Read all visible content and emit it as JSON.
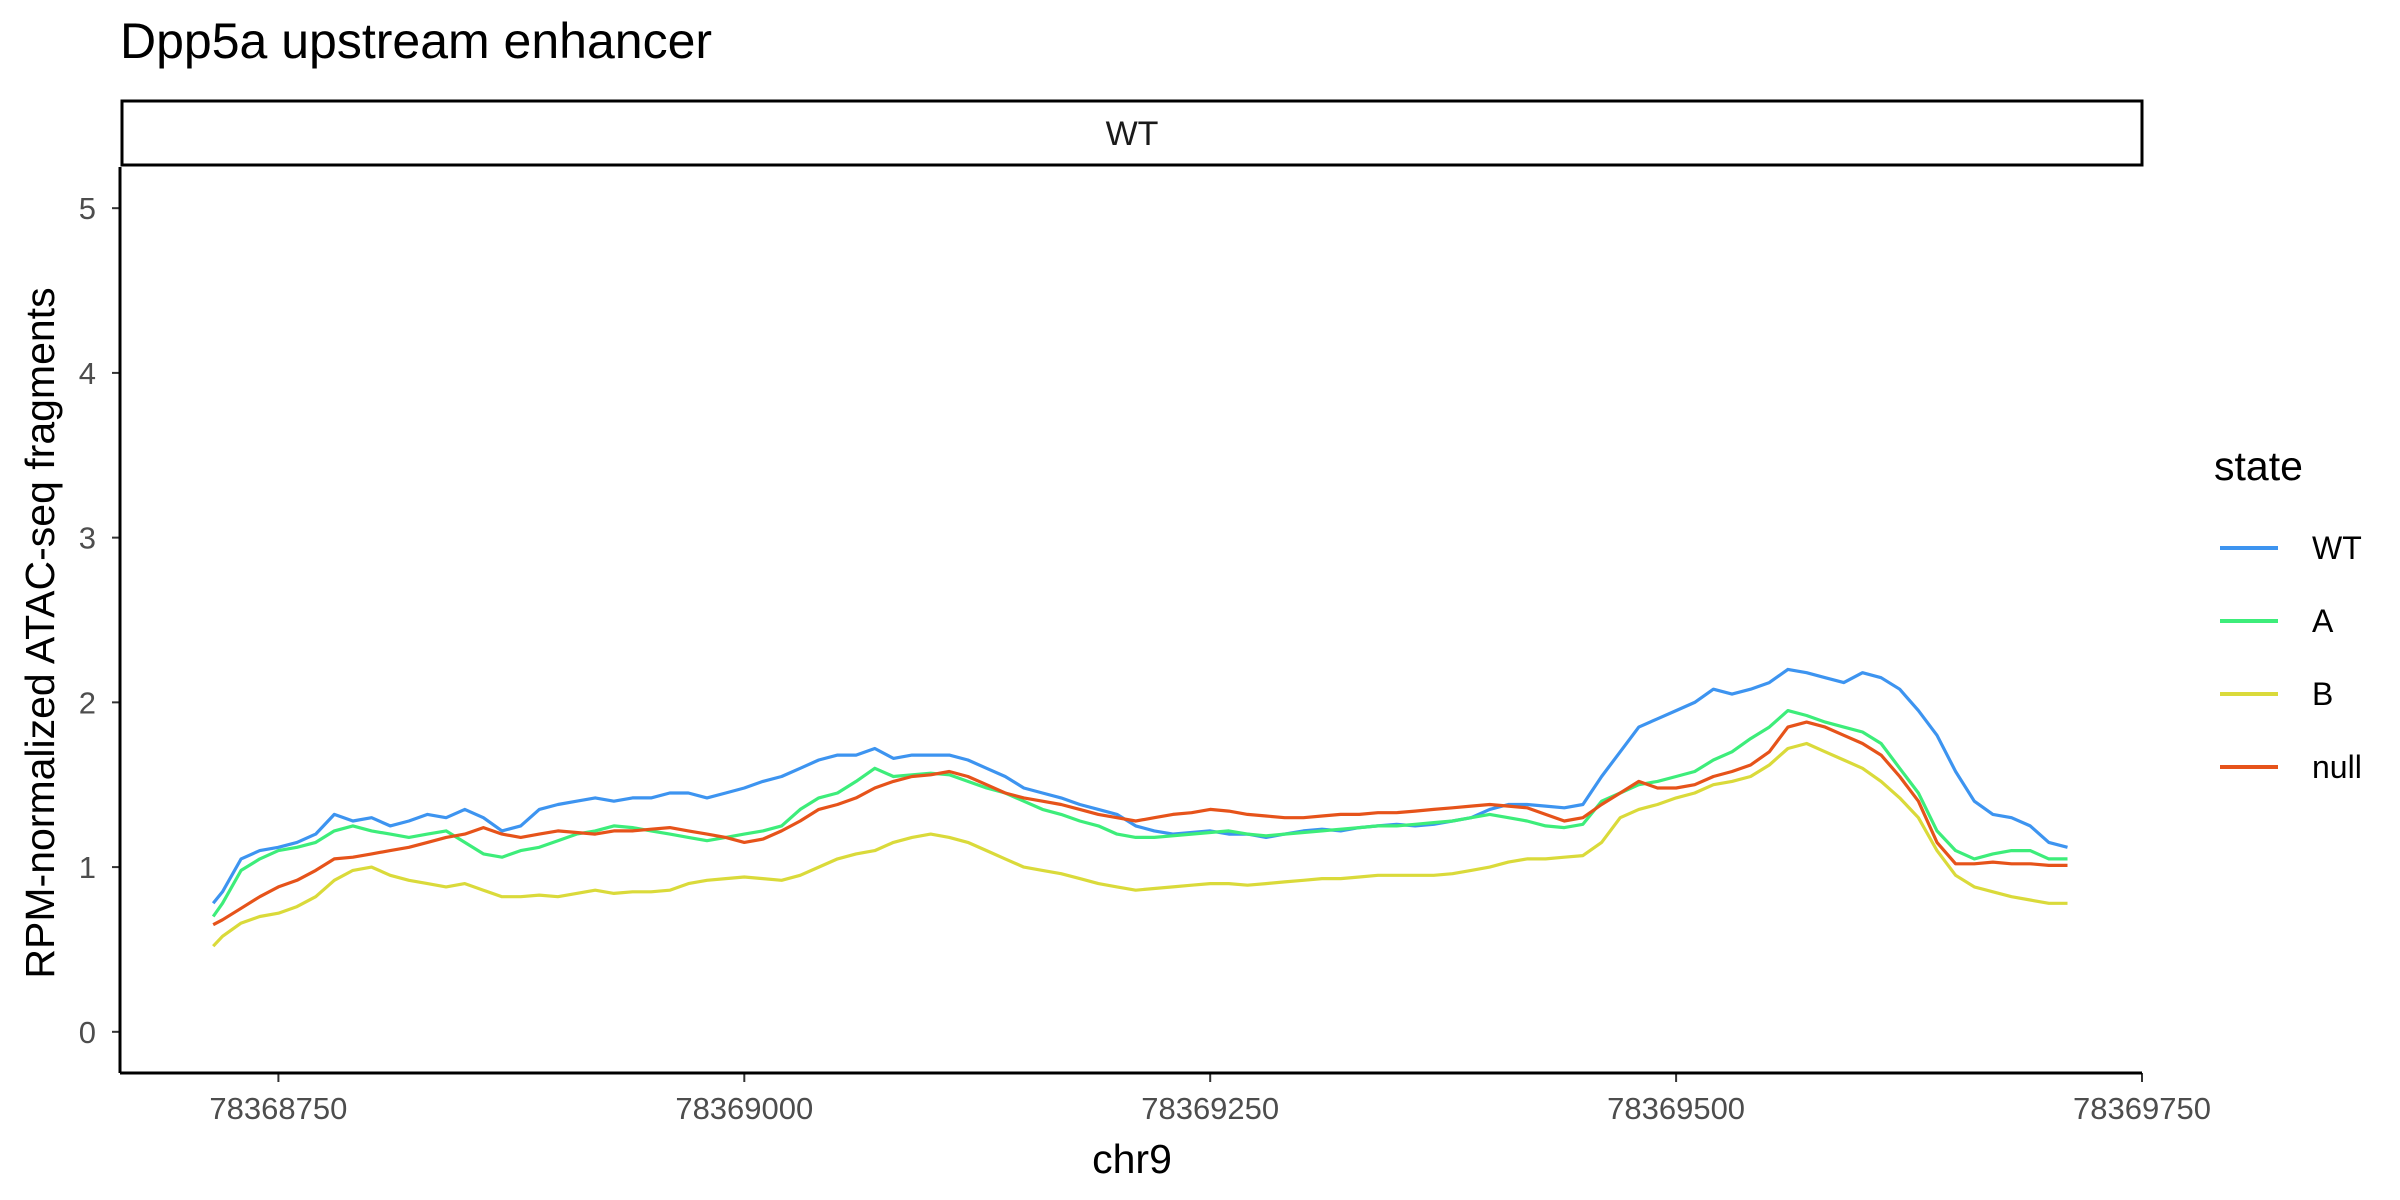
{
  "chart_data": {
    "type": "line",
    "title": "Dpp5a upstream enhancer",
    "facet_label": "WT",
    "xlabel": "chr9",
    "ylabel": "RPM-normalized ATAC-seq fragments",
    "xlim": [
      78368665,
      78369750
    ],
    "ylim": [
      -0.25,
      5.25
    ],
    "xticks": [
      78368750,
      78369000,
      78369250,
      78369500,
      78369750
    ],
    "yticks": [
      0,
      1,
      2,
      3,
      4,
      5
    ],
    "grid": false,
    "legend": {
      "title": "state",
      "position": "right"
    },
    "x": [
      78368715,
      78368720,
      78368730,
      78368740,
      78368750,
      78368760,
      78368770,
      78368780,
      78368790,
      78368800,
      78368810,
      78368820,
      78368830,
      78368840,
      78368850,
      78368860,
      78368870,
      78368880,
      78368890,
      78368900,
      78368910,
      78368920,
      78368930,
      78368940,
      78368950,
      78368960,
      78368970,
      78368980,
      78368990,
      78369000,
      78369010,
      78369020,
      78369030,
      78369040,
      78369050,
      78369060,
      78369070,
      78369080,
      78369090,
      78369100,
      78369110,
      78369120,
      78369130,
      78369140,
      78369150,
      78369160,
      78369170,
      78369180,
      78369190,
      78369200,
      78369210,
      78369220,
      78369230,
      78369240,
      78369250,
      78369260,
      78369270,
      78369280,
      78369290,
      78369300,
      78369310,
      78369320,
      78369330,
      78369340,
      78369350,
      78369360,
      78369370,
      78369380,
      78369390,
      78369400,
      78369410,
      78369420,
      78369430,
      78369440,
      78369450,
      78369460,
      78369470,
      78369480,
      78369490,
      78369500,
      78369510,
      78369520,
      78369530,
      78369540,
      78369550,
      78369560,
      78369570,
      78369580,
      78369590,
      78369600,
      78369610,
      78369620,
      78369630,
      78369640,
      78369650,
      78369660,
      78369670,
      78369680,
      78369690,
      78369700,
      78369710
    ],
    "series": [
      {
        "name": "WT",
        "color": "#3d94f0",
        "values": [
          0.78,
          0.85,
          1.05,
          1.1,
          1.12,
          1.15,
          1.2,
          1.32,
          1.28,
          1.3,
          1.25,
          1.28,
          1.32,
          1.3,
          1.35,
          1.3,
          1.22,
          1.25,
          1.35,
          1.38,
          1.4,
          1.42,
          1.4,
          1.42,
          1.42,
          1.45,
          1.45,
          1.42,
          1.45,
          1.48,
          1.52,
          1.55,
          1.6,
          1.65,
          1.68,
          1.68,
          1.72,
          1.66,
          1.68,
          1.68,
          1.68,
          1.65,
          1.6,
          1.55,
          1.48,
          1.45,
          1.42,
          1.38,
          1.35,
          1.32,
          1.25,
          1.22,
          1.2,
          1.21,
          1.22,
          1.2,
          1.2,
          1.18,
          1.2,
          1.22,
          1.23,
          1.22,
          1.24,
          1.25,
          1.26,
          1.25,
          1.26,
          1.28,
          1.3,
          1.35,
          1.38,
          1.38,
          1.37,
          1.36,
          1.38,
          1.55,
          1.7,
          1.85,
          1.9,
          1.95,
          2.0,
          2.08,
          2.05,
          2.08,
          2.12,
          2.2,
          2.18,
          2.15,
          2.12,
          2.18,
          2.15,
          2.08,
          1.95,
          1.8,
          1.58,
          1.4,
          1.32,
          1.3,
          1.25,
          1.15,
          1.12
        ]
      },
      {
        "name": "A",
        "color": "#3ded7a",
        "values": [
          0.7,
          0.78,
          0.98,
          1.05,
          1.1,
          1.12,
          1.15,
          1.22,
          1.25,
          1.22,
          1.2,
          1.18,
          1.2,
          1.22,
          1.15,
          1.08,
          1.06,
          1.1,
          1.12,
          1.16,
          1.2,
          1.22,
          1.25,
          1.24,
          1.22,
          1.2,
          1.18,
          1.16,
          1.18,
          1.2,
          1.22,
          1.25,
          1.35,
          1.42,
          1.45,
          1.52,
          1.6,
          1.55,
          1.56,
          1.57,
          1.56,
          1.52,
          1.48,
          1.45,
          1.4,
          1.35,
          1.32,
          1.28,
          1.25,
          1.2,
          1.18,
          1.18,
          1.19,
          1.2,
          1.21,
          1.22,
          1.2,
          1.19,
          1.2,
          1.21,
          1.22,
          1.23,
          1.24,
          1.25,
          1.25,
          1.26,
          1.27,
          1.28,
          1.3,
          1.32,
          1.3,
          1.28,
          1.25,
          1.24,
          1.26,
          1.4,
          1.45,
          1.5,
          1.52,
          1.55,
          1.58,
          1.65,
          1.7,
          1.78,
          1.85,
          1.95,
          1.92,
          1.88,
          1.85,
          1.82,
          1.75,
          1.6,
          1.45,
          1.22,
          1.1,
          1.05,
          1.08,
          1.1,
          1.1,
          1.05,
          1.05
        ]
      },
      {
        "name": "B",
        "color": "#dada3a",
        "values": [
          0.52,
          0.58,
          0.66,
          0.7,
          0.72,
          0.76,
          0.82,
          0.92,
          0.98,
          1.0,
          0.95,
          0.92,
          0.9,
          0.88,
          0.9,
          0.86,
          0.82,
          0.82,
          0.83,
          0.82,
          0.84,
          0.86,
          0.84,
          0.85,
          0.85,
          0.86,
          0.9,
          0.92,
          0.93,
          0.94,
          0.93,
          0.92,
          0.95,
          1.0,
          1.05,
          1.08,
          1.1,
          1.15,
          1.18,
          1.2,
          1.18,
          1.15,
          1.1,
          1.05,
          1.0,
          0.98,
          0.96,
          0.93,
          0.9,
          0.88,
          0.86,
          0.87,
          0.88,
          0.89,
          0.9,
          0.9,
          0.89,
          0.9,
          0.91,
          0.92,
          0.93,
          0.93,
          0.94,
          0.95,
          0.95,
          0.95,
          0.95,
          0.96,
          0.98,
          1.0,
          1.03,
          1.05,
          1.05,
          1.06,
          1.07,
          1.15,
          1.3,
          1.35,
          1.38,
          1.42,
          1.45,
          1.5,
          1.52,
          1.55,
          1.62,
          1.72,
          1.75,
          1.7,
          1.65,
          1.6,
          1.52,
          1.42,
          1.3,
          1.1,
          0.95,
          0.88,
          0.85,
          0.82,
          0.8,
          0.78,
          0.78
        ]
      },
      {
        "name": "null",
        "color": "#e6531a",
        "values": [
          0.65,
          0.68,
          0.75,
          0.82,
          0.88,
          0.92,
          0.98,
          1.05,
          1.06,
          1.08,
          1.1,
          1.12,
          1.15,
          1.18,
          1.2,
          1.24,
          1.2,
          1.18,
          1.2,
          1.22,
          1.21,
          1.2,
          1.22,
          1.22,
          1.23,
          1.24,
          1.22,
          1.2,
          1.18,
          1.15,
          1.17,
          1.22,
          1.28,
          1.35,
          1.38,
          1.42,
          1.48,
          1.52,
          1.55,
          1.56,
          1.58,
          1.55,
          1.5,
          1.45,
          1.42,
          1.4,
          1.38,
          1.35,
          1.32,
          1.3,
          1.28,
          1.3,
          1.32,
          1.33,
          1.35,
          1.34,
          1.32,
          1.31,
          1.3,
          1.3,
          1.31,
          1.32,
          1.32,
          1.33,
          1.33,
          1.34,
          1.35,
          1.36,
          1.37,
          1.38,
          1.37,
          1.36,
          1.32,
          1.28,
          1.3,
          1.38,
          1.45,
          1.52,
          1.48,
          1.48,
          1.5,
          1.55,
          1.58,
          1.62,
          1.7,
          1.85,
          1.88,
          1.85,
          1.8,
          1.75,
          1.68,
          1.55,
          1.4,
          1.15,
          1.02,
          1.02,
          1.03,
          1.02,
          1.02,
          1.01,
          1.01
        ]
      }
    ]
  }
}
